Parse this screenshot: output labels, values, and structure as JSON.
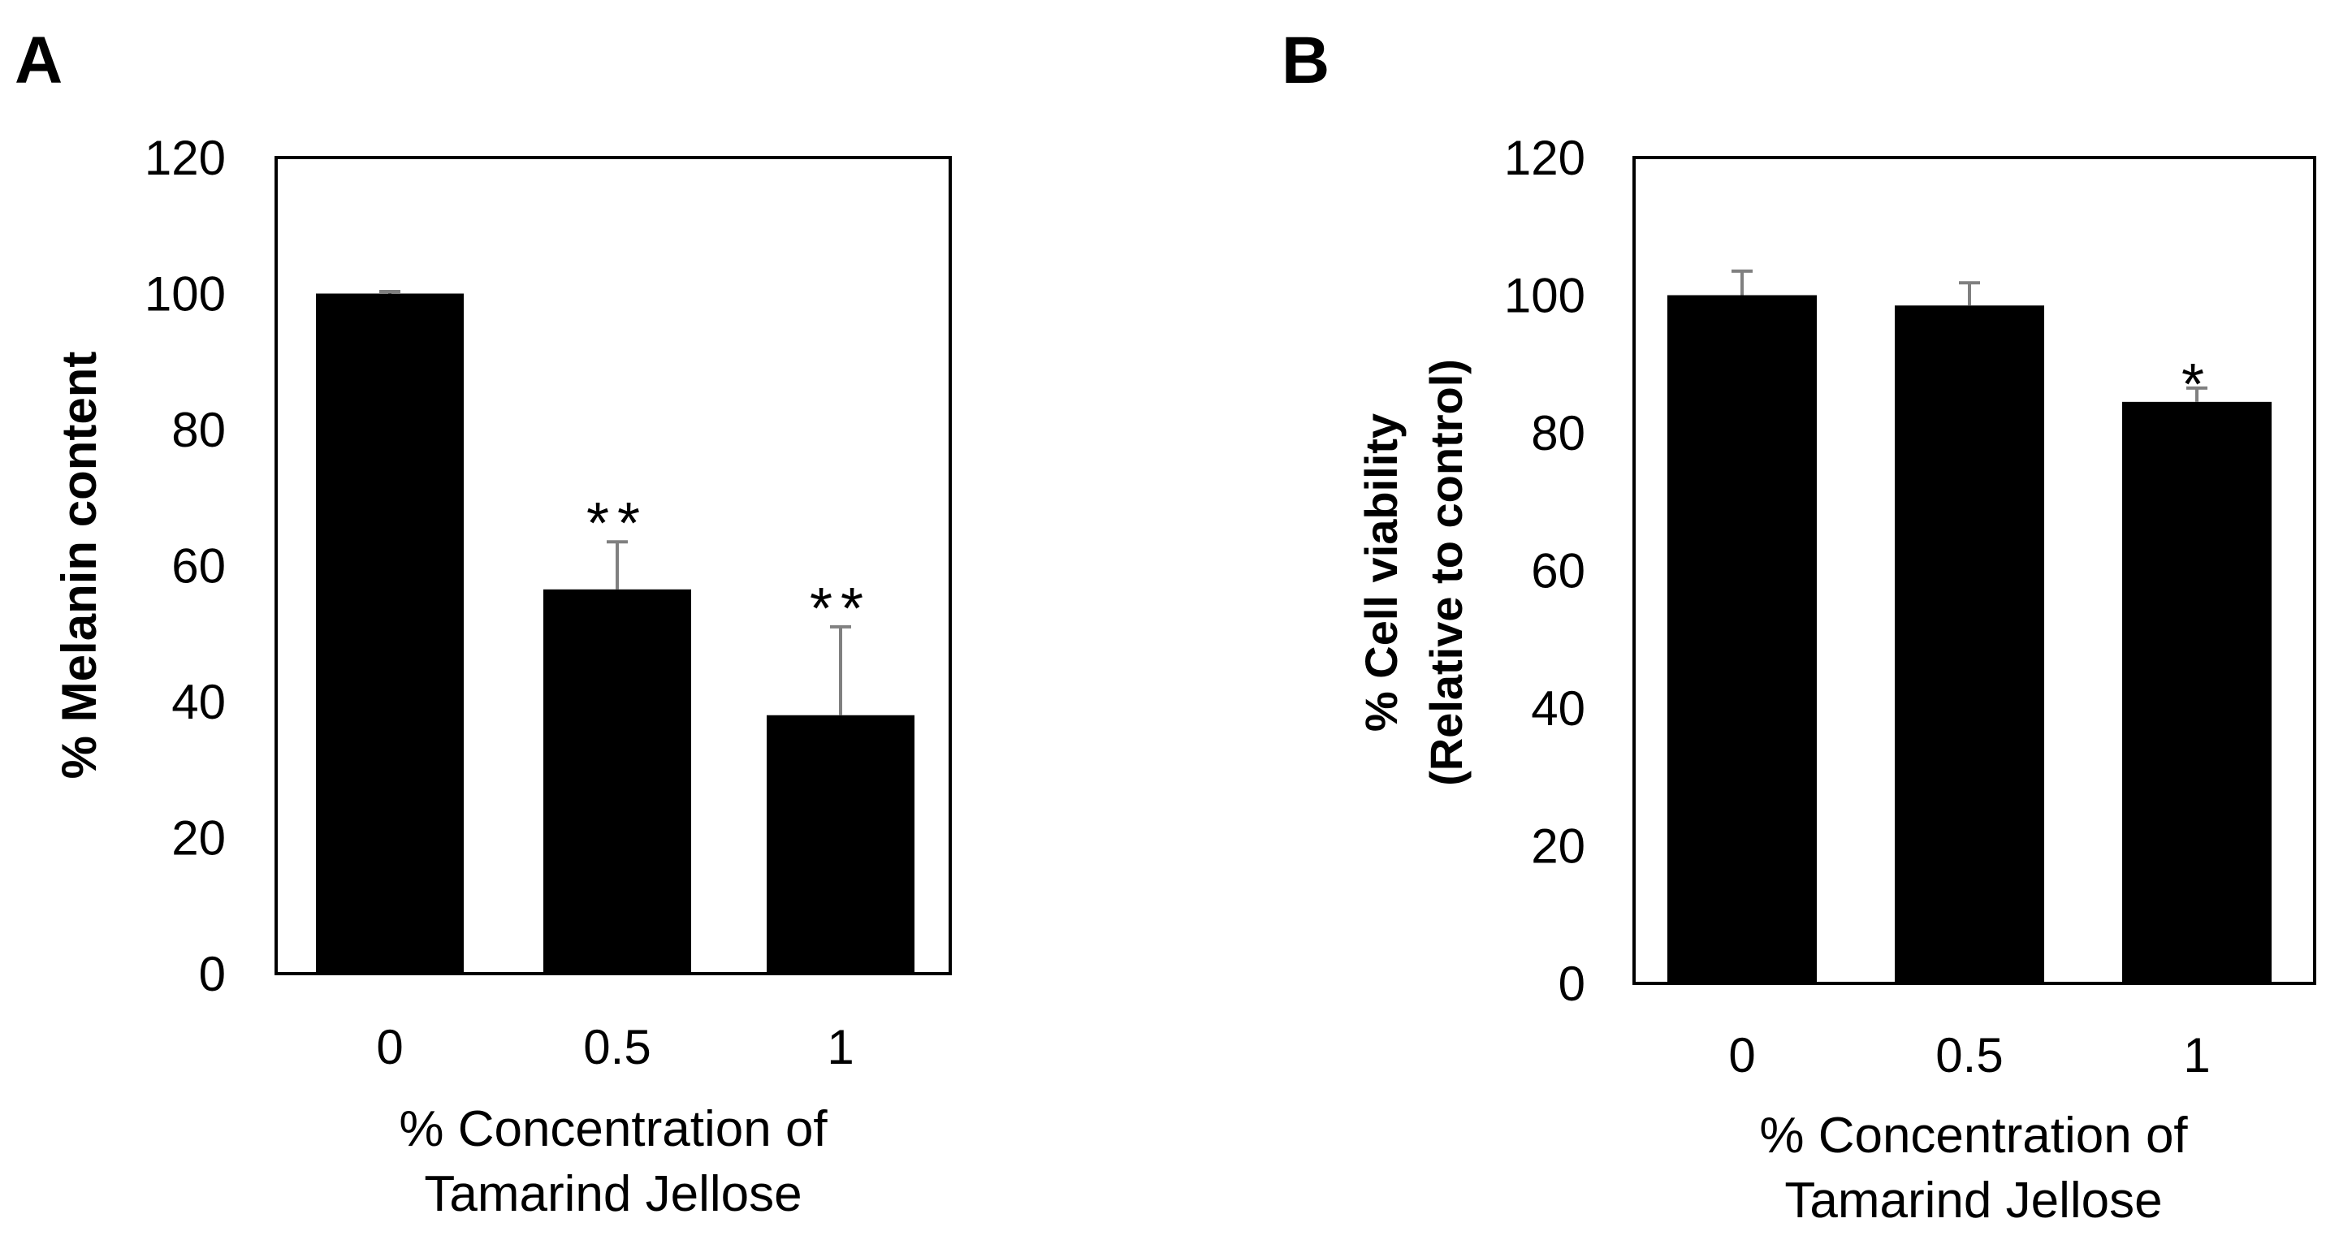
{
  "chart_data": [
    {
      "panel_label": "A",
      "type": "bar",
      "categories": [
        "0",
        "0.5",
        "1"
      ],
      "values": [
        100,
        56.5,
        38
      ],
      "errors": [
        0.3,
        7,
        13
      ],
      "significance": [
        "",
        "**",
        "**"
      ],
      "ylabel": "% Melanin content",
      "xlabel_lines": [
        "% Concentration of",
        "Tamarind Jellose"
      ],
      "ylim": [
        0,
        120
      ],
      "yticks": [
        "0",
        "20",
        "40",
        "60",
        "80",
        "100",
        "120"
      ],
      "bar_color": "#000000",
      "error_color": "#808080"
    },
    {
      "panel_label": "B",
      "type": "bar",
      "categories": [
        "0",
        "0.5",
        "1"
      ],
      "values": [
        100,
        98.5,
        84.5
      ],
      "errors": [
        3.5,
        3.3,
        2
      ],
      "significance": [
        "",
        "",
        "*"
      ],
      "ylabel_lines": [
        "% Cell viability",
        "(Relative to control)"
      ],
      "xlabel_lines": [
        "% Concentration of",
        "Tamarind Jellose"
      ],
      "ylim": [
        0,
        120
      ],
      "yticks": [
        "0",
        "20",
        "40",
        "60",
        "80",
        "100",
        "120"
      ],
      "bar_color": "#000000",
      "error_color": "#808080"
    }
  ]
}
